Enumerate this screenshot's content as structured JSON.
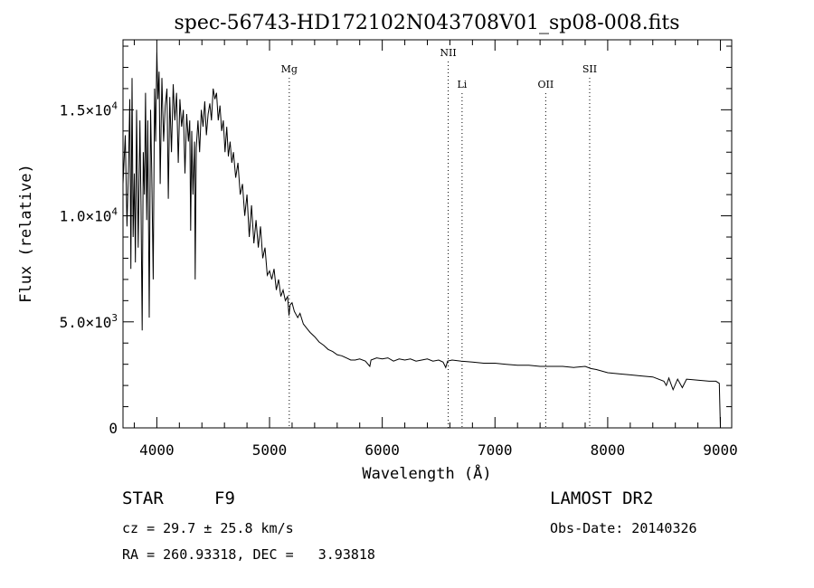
{
  "chart_data": {
    "type": "line",
    "title": "spec-56743-HD172102N043708V01_sp08-008.fits",
    "xlabel": "Wavelength (Å)",
    "ylabel": "Flux (relative)",
    "xlim": [
      3700,
      9100
    ],
    "ylim": [
      0,
      18300
    ],
    "x_ticks": [
      4000,
      5000,
      6000,
      7000,
      8000,
      9000
    ],
    "x_tick_labels": [
      "4000",
      "5000",
      "6000",
      "7000",
      "8000",
      "9000"
    ],
    "y_ticks": [
      0,
      5000,
      10000,
      15000
    ],
    "y_tick_labels": [
      {
        "mant": "0",
        "exp": ""
      },
      {
        "mant": "5.0×10",
        "exp": "3"
      },
      {
        "mant": "1.0×10",
        "exp": "4"
      },
      {
        "mant": "1.5×10",
        "exp": "4"
      }
    ],
    "grid": false,
    "series": [
      {
        "x": [
          3700,
          3720,
          3735,
          3750,
          3760,
          3770,
          3780,
          3790,
          3800,
          3810,
          3820,
          3835,
          3850,
          3860,
          3870,
          3880,
          3890,
          3900,
          3910,
          3920,
          3933,
          3945,
          3955,
          3968,
          3980,
          3990,
          4000,
          4010,
          4020,
          4030,
          4045,
          4060,
          4075,
          4090,
          4102,
          4115,
          4130,
          4145,
          4160,
          4175,
          4190,
          4205,
          4220,
          4235,
          4250,
          4265,
          4280,
          4292,
          4300,
          4310,
          4320,
          4335,
          4340,
          4350,
          4365,
          4380,
          4395,
          4410,
          4425,
          4440,
          4455,
          4470,
          4485,
          4500,
          4515,
          4530,
          4545,
          4560,
          4575,
          4590,
          4605,
          4620,
          4635,
          4650,
          4665,
          4680,
          4700,
          4720,
          4740,
          4760,
          4780,
          4800,
          4820,
          4840,
          4861,
          4880,
          4900,
          4920,
          4940,
          4960,
          4980,
          5000,
          5020,
          5040,
          5060,
          5080,
          5100,
          5120,
          5140,
          5160,
          5172,
          5183,
          5200,
          5220,
          5250,
          5270,
          5300,
          5330,
          5360,
          5400,
          5440,
          5480,
          5520,
          5560,
          5600,
          5640,
          5680,
          5720,
          5760,
          5800,
          5850,
          5890,
          5900,
          5950,
          6000,
          6050,
          6100,
          6150,
          6200,
          6250,
          6300,
          6350,
          6400,
          6450,
          6500,
          6540,
          6563,
          6580,
          6620,
          6700,
          6800,
          6900,
          7000,
          7100,
          7200,
          7300,
          7400,
          7500,
          7600,
          7700,
          7800,
          7850,
          7900,
          8000,
          8100,
          8200,
          8300,
          8400,
          8498,
          8520,
          8542,
          8580,
          8620,
          8662,
          8700,
          8800,
          8900,
          8960,
          8990,
          9000
        ],
        "y": [
          11500,
          13800,
          9500,
          12500,
          15500,
          7500,
          16500,
          9000,
          12000,
          7800,
          15000,
          8500,
          14500,
          10500,
          4600,
          13000,
          11000,
          15800,
          9800,
          14500,
          5200,
          15000,
          12000,
          7000,
          16000,
          13500,
          17800,
          15500,
          16800,
          11500,
          16500,
          13500,
          15200,
          16000,
          10800,
          15600,
          13000,
          16200,
          14500,
          15800,
          12500,
          15500,
          14200,
          15000,
          12000,
          14800,
          13500,
          14500,
          9300,
          14000,
          11000,
          13500,
          7000,
          13200,
          14500,
          13000,
          15000,
          14200,
          15400,
          13800,
          14800,
          15300,
          14500,
          16000,
          15500,
          15800,
          14500,
          15200,
          14000,
          14500,
          13000,
          14200,
          12800,
          13500,
          12500,
          13000,
          11800,
          12500,
          11000,
          11500,
          10000,
          11000,
          9000,
          10500,
          8700,
          9800,
          8500,
          9500,
          8000,
          8500,
          7200,
          7400,
          7000,
          7500,
          6500,
          7000,
          6200,
          6500,
          6000,
          6200,
          5300,
          5800,
          5900,
          5500,
          5200,
          5400,
          4900,
          4700,
          4500,
          4300,
          4050,
          3900,
          3700,
          3600,
          3450,
          3400,
          3300,
          3200,
          3200,
          3250,
          3150,
          2900,
          3200,
          3300,
          3250,
          3300,
          3150,
          3250,
          3200,
          3250,
          3150,
          3200,
          3250,
          3150,
          3200,
          3100,
          2850,
          3150,
          3200,
          3150,
          3100,
          3050,
          3050,
          3000,
          2950,
          2950,
          2900,
          2900,
          2900,
          2850,
          2900,
          2800,
          2750,
          2600,
          2550,
          2500,
          2450,
          2400,
          2200,
          2000,
          2350,
          1800,
          2300,
          1900,
          2300,
          2250,
          2200,
          2200,
          2100,
          0
        ]
      }
    ],
    "lines": [
      {
        "label": "Mg",
        "x": 5175
      },
      {
        "label": "NII",
        "x": 6585
      },
      {
        "label": "Li",
        "x": 6708
      },
      {
        "label": "OII",
        "x": 7450
      },
      {
        "label": "SII",
        "x": 7840
      }
    ]
  },
  "footer": {
    "object_class": "STAR",
    "subclass": "F9",
    "survey": "LAMOST DR2",
    "redshift": "cz = 29.7 ± 25.8 km/s",
    "obs_date": "Obs-Date: 20140326",
    "coords": "RA = 260.93318, DEC =   3.93818"
  }
}
